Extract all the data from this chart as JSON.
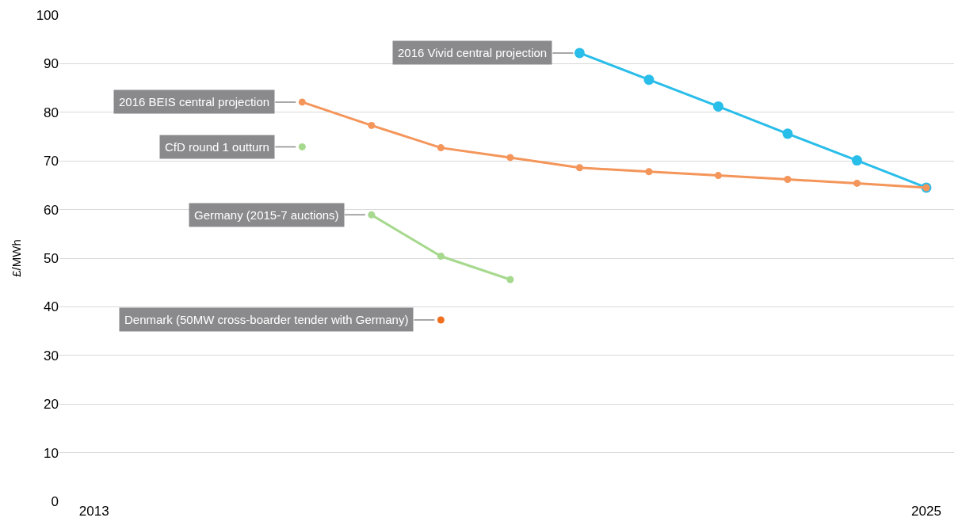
{
  "chart_data": {
    "type": "line",
    "ylabel": "£/MWh",
    "xlim": [
      2012.5,
      2025.4
    ],
    "xticks": [
      2013,
      2025
    ],
    "ylim": [
      0,
      100
    ],
    "yticks": [
      0,
      10,
      20,
      30,
      40,
      50,
      60,
      70,
      80,
      90,
      100
    ],
    "grid": "y",
    "legend": false,
    "marker": "circle",
    "line_style": "solid",
    "series": [
      {
        "name": "2016 Vivid central projection",
        "color": "#29bde9",
        "x": [
          2020,
          2021,
          2022,
          2023,
          2024,
          2025
        ],
        "values": [
          92.2,
          86.7,
          81.2,
          75.6,
          70.1,
          64.5
        ]
      },
      {
        "name": "2016 BEIS central projection",
        "color": "#f4955a",
        "x": [
          2016,
          2017,
          2018,
          2019,
          2020,
          2021,
          2022,
          2023,
          2024,
          2025
        ],
        "values": [
          82.1,
          77.3,
          72.7,
          70.7,
          68.6,
          67.8,
          67.0,
          66.2,
          65.4,
          64.5
        ]
      },
      {
        "name": "CfD round 1 outturn",
        "color": "#a6d98e",
        "x": [
          2016
        ],
        "values": [
          72.9
        ]
      },
      {
        "name": "Germany (2015-7 auctions)",
        "color": "#a6d98e",
        "x": [
          2017,
          2018,
          2019
        ],
        "values": [
          58.9,
          50.4,
          45.6
        ]
      },
      {
        "name": "Denmark (50MW cross-boarder tender with Germany)",
        "color": "#f07020",
        "x": [
          2018
        ],
        "values": [
          37.3
        ]
      }
    ]
  }
}
